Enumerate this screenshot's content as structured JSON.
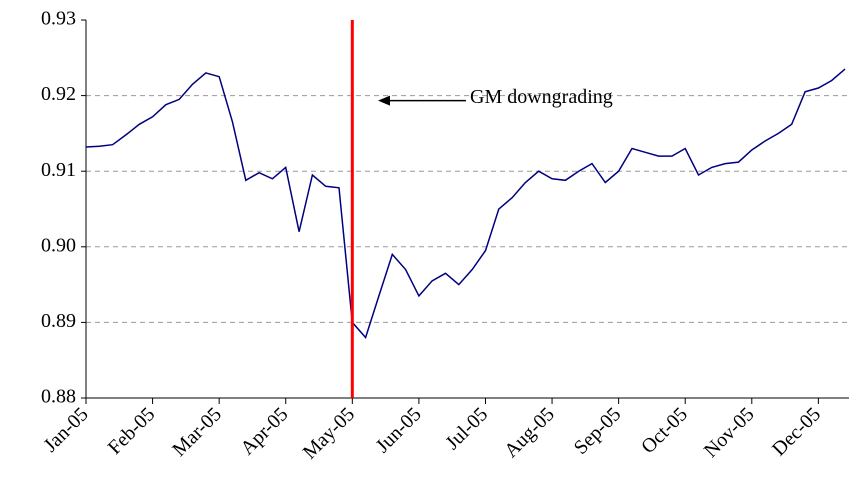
{
  "chart_data": {
    "type": "line",
    "categories": [
      "Jan-05",
      null,
      null,
      null,
      null,
      "Feb-05",
      null,
      null,
      null,
      null,
      "Mar-05",
      null,
      null,
      null,
      null,
      "Apr-05",
      null,
      null,
      null,
      null,
      "May-05",
      null,
      null,
      null,
      null,
      "Jun-05",
      null,
      null,
      null,
      null,
      "Jul-05",
      null,
      null,
      null,
      null,
      "Aug-05",
      null,
      null,
      null,
      null,
      "Sep-05",
      null,
      null,
      null,
      null,
      "Oct-05",
      null,
      null,
      null,
      null,
      "Nov-05",
      null,
      null,
      null,
      null,
      "Dec-05",
      null,
      null
    ],
    "series": [
      {
        "color": "#000080",
        "values": [
          0.9132,
          0.9133,
          0.9135,
          0.9148,
          0.9162,
          0.9172,
          0.9188,
          0.9195,
          0.9215,
          0.923,
          0.9225,
          0.9165,
          0.9088,
          0.9098,
          0.909,
          0.9105,
          0.902,
          0.9095,
          0.908,
          0.9078,
          0.89,
          0.888,
          0.8935,
          0.899,
          0.897,
          0.8935,
          0.8955,
          0.8965,
          0.895,
          0.897,
          0.8995,
          0.905,
          0.9065,
          0.9085,
          0.91,
          0.909,
          0.9088,
          0.91,
          0.911,
          0.9085,
          0.91,
          0.913,
          0.9125,
          0.912,
          0.912,
          0.913,
          0.9095,
          0.9105,
          0.911,
          0.9112,
          0.9128,
          0.914,
          0.915,
          0.9162,
          0.9205,
          0.921,
          0.922,
          0.9235
        ]
      }
    ],
    "ylim": [
      0.88,
      0.93
    ],
    "yticks": [
      {
        "value": 0.88,
        "label": "0.88"
      },
      {
        "value": 0.89,
        "label": "0.89"
      },
      {
        "value": 0.9,
        "label": "0.90"
      },
      {
        "value": 0.91,
        "label": "0.91"
      },
      {
        "value": 0.92,
        "label": "0.92"
      },
      {
        "value": 0.93,
        "label": "0.93"
      }
    ],
    "grid": true,
    "vline": {
      "at": "May-05",
      "color": "#ff0000"
    },
    "annotations": [
      {
        "text": "GM downgrading"
      }
    ]
  }
}
